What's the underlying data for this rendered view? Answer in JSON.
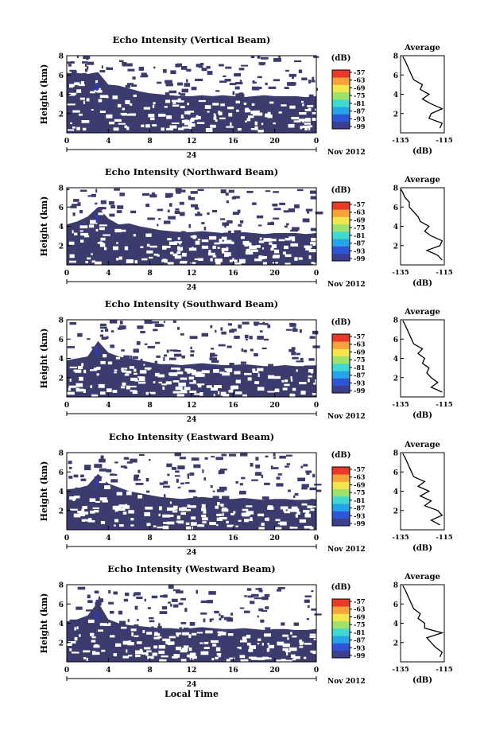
{
  "figure": {
    "xlabel": "Local Time",
    "date_label": "Nov 2012",
    "day_label": "24",
    "colorbar_unit": "(dB)",
    "average_title": "Average",
    "average_xlabel": "(dB)"
  },
  "colorbar_ticks": [
    "-57",
    "-63",
    "-69",
    "-75",
    "-81",
    "-87",
    "-93",
    "-99"
  ],
  "colors": {
    "echo_fill": "#3b3b6e",
    "strong_echo": "#2a3ad6",
    "colorbar": [
      "#3a3f8f",
      "#2e55d6",
      "#27a3ea",
      "#3fd9d0",
      "#9de26a",
      "#f3e64a",
      "#f6a33a",
      "#e83a26"
    ]
  },
  "chart_data": [
    {
      "type": "heatmap",
      "title": "Echo Intensity (Vertical Beam)",
      "ylabel": "Height (km)",
      "x_ticks": [
        "0",
        "4",
        "8",
        "12",
        "16",
        "20",
        "0"
      ],
      "y_ticks": [
        "8",
        "6",
        "4",
        "2"
      ],
      "xlim": [
        0,
        24
      ],
      "ylim": [
        0,
        8
      ],
      "boundary_top_km": [
        6.2,
        6.2,
        6.1,
        6.3,
        5.0,
        4.9,
        4.6,
        4.3,
        4.1,
        4.0,
        3.9,
        3.8,
        3.8,
        3.9,
        3.8,
        3.9,
        3.8,
        3.7,
        3.8,
        3.9,
        3.8,
        3.8,
        3.8,
        3.7,
        3.8
      ],
      "average_profile": {
        "title": "Average",
        "xlim": [
          -135,
          -115
        ],
        "x_ticks": [
          "-135",
          "-115"
        ],
        "y_ticks": [
          "8",
          "6",
          "4",
          "2"
        ],
        "xlabel": "(dB)",
        "height_km": [
          0.5,
          1.0,
          1.5,
          2.0,
          2.5,
          3.0,
          3.5,
          4.0,
          4.5,
          5.0,
          5.5,
          6.0,
          6.5,
          7.0,
          7.5,
          7.9
        ],
        "value_db": [
          -117,
          -116,
          -122,
          -121,
          -116,
          -121,
          -125,
          -122,
          -126,
          -125,
          -129,
          -130,
          -131,
          -132,
          -133,
          -134
        ]
      }
    },
    {
      "type": "heatmap",
      "title": "Echo Intensity (Northward Beam)",
      "ylabel": "Height (km)",
      "x_ticks": [
        "0",
        "4",
        "8",
        "12",
        "16",
        "20",
        "0"
      ],
      "y_ticks": [
        "8",
        "6",
        "4",
        "2"
      ],
      "xlim": [
        0,
        24
      ],
      "ylim": [
        0,
        8
      ],
      "boundary_top_km": [
        4.2,
        4.5,
        5.0,
        6.0,
        4.8,
        4.2,
        4.3,
        4.0,
        3.8,
        3.6,
        3.5,
        3.4,
        3.4,
        3.5,
        3.4,
        3.3,
        3.3,
        3.4,
        3.3,
        3.2,
        3.3,
        3.3,
        3.3,
        3.2,
        3.3
      ],
      "average_profile": {
        "title": "Average",
        "xlim": [
          -135,
          -115
        ],
        "x_ticks": [
          "-135",
          "-115"
        ],
        "y_ticks": [
          "8",
          "6",
          "4",
          "2"
        ],
        "xlabel": "(dB)",
        "height_km": [
          0.5,
          1.0,
          1.5,
          2.0,
          2.5,
          3.0,
          3.5,
          4.0,
          4.5,
          5.0,
          5.5,
          6.0,
          6.5,
          7.0,
          7.5,
          7.9
        ],
        "value_db": [
          -116,
          -118,
          -123,
          -117,
          -116,
          -121,
          -124,
          -122,
          -126,
          -127,
          -129,
          -131,
          -131,
          -133,
          -134,
          -135
        ]
      }
    },
    {
      "type": "heatmap",
      "title": "Echo Intensity (Southward Beam)",
      "ylabel": "Height (km)",
      "x_ticks": [
        "0",
        "4",
        "8",
        "12",
        "16",
        "20",
        "0"
      ],
      "y_ticks": [
        "8",
        "6",
        "4",
        "2"
      ],
      "xlim": [
        0,
        24
      ],
      "ylim": [
        0,
        8
      ],
      "boundary_top_km": [
        3.8,
        4.0,
        4.2,
        5.8,
        4.6,
        4.2,
        4.0,
        3.8,
        3.6,
        3.4,
        3.4,
        3.3,
        3.4,
        3.5,
        3.4,
        3.3,
        3.3,
        3.4,
        3.3,
        3.2,
        3.2,
        3.3,
        3.2,
        3.2,
        3.3
      ],
      "average_profile": {
        "title": "Average",
        "xlim": [
          -135,
          -115
        ],
        "x_ticks": [
          "-135",
          "-115"
        ],
        "y_ticks": [
          "8",
          "6",
          "4",
          "2"
        ],
        "xlabel": "(dB)",
        "height_km": [
          0.5,
          1.0,
          1.5,
          2.0,
          2.5,
          3.0,
          3.5,
          4.0,
          4.5,
          5.0,
          5.5,
          6.0,
          6.5,
          7.0,
          7.5,
          7.9
        ],
        "value_db": [
          -116,
          -121,
          -118,
          -121,
          -123,
          -122,
          -125,
          -124,
          -127,
          -125,
          -129,
          -130,
          -131,
          -132,
          -133,
          -134
        ]
      }
    },
    {
      "type": "heatmap",
      "title": "Echo Intensity (Eastward Beam)",
      "ylabel": "Height (km)",
      "x_ticks": [
        "0",
        "4",
        "8",
        "12",
        "16",
        "20",
        "0"
      ],
      "y_ticks": [
        "8",
        "6",
        "4",
        "2"
      ],
      "xlim": [
        0,
        24
      ],
      "ylim": [
        0,
        8
      ],
      "boundary_top_km": [
        4.2,
        4.3,
        4.6,
        5.8,
        4.8,
        4.4,
        4.0,
        3.8,
        3.6,
        3.4,
        3.3,
        3.2,
        3.3,
        3.4,
        3.3,
        3.2,
        3.2,
        3.3,
        3.2,
        3.1,
        3.2,
        3.2,
        3.1,
        3.1,
        3.2
      ],
      "average_profile": {
        "title": "Average",
        "xlim": [
          -135,
          -115
        ],
        "x_ticks": [
          "-135",
          "-115"
        ],
        "y_ticks": [
          "8",
          "6",
          "4",
          "2"
        ],
        "xlabel": "(dB)",
        "height_km": [
          0.5,
          1.0,
          1.5,
          2.0,
          2.5,
          3.0,
          3.5,
          4.0,
          4.5,
          5.0,
          5.5,
          6.0,
          6.5,
          7.0,
          7.5,
          7.9
        ],
        "value_db": [
          -117,
          -121,
          -116,
          -118,
          -124,
          -121,
          -126,
          -122,
          -127,
          -124,
          -129,
          -130,
          -131,
          -132,
          -133,
          -134
        ]
      }
    },
    {
      "type": "heatmap",
      "title": "Echo Intensity (Westward Beam)",
      "ylabel": "Height (km)",
      "x_ticks": [
        "0",
        "4",
        "8",
        "12",
        "16",
        "20",
        "0"
      ],
      "y_ticks": [
        "8",
        "6",
        "4",
        "2"
      ],
      "xlim": [
        0,
        24
      ],
      "ylim": [
        0,
        8
      ],
      "boundary_top_km": [
        4.2,
        4.4,
        4.8,
        6.2,
        4.4,
        4.0,
        3.8,
        3.7,
        3.6,
        3.5,
        3.5,
        3.4,
        3.5,
        3.6,
        3.5,
        3.4,
        3.4,
        3.5,
        3.4,
        3.3,
        3.4,
        3.4,
        3.3,
        3.3,
        3.4
      ],
      "average_profile": {
        "title": "Average",
        "xlim": [
          -135,
          -115
        ],
        "x_ticks": [
          "-135",
          "-115"
        ],
        "y_ticks": [
          "8",
          "6",
          "4",
          "2"
        ],
        "xlabel": "(dB)",
        "height_km": [
          0.5,
          1.0,
          1.5,
          2.0,
          2.5,
          3.0,
          3.5,
          4.0,
          4.5,
          5.0,
          5.5,
          6.0,
          6.5,
          7.0,
          7.5,
          7.9
        ],
        "value_db": [
          -117,
          -116,
          -119,
          -121,
          -123,
          -116,
          -124,
          -124,
          -127,
          -126,
          -129,
          -130,
          -131,
          -132,
          -133,
          -134
        ]
      }
    }
  ]
}
